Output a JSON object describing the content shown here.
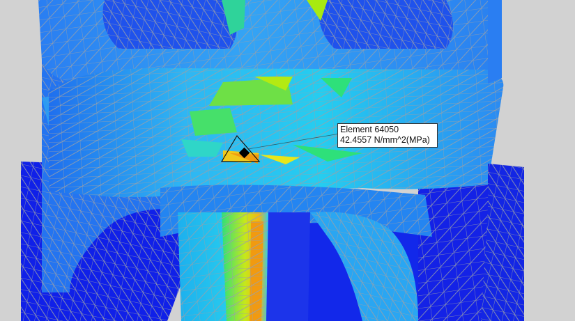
{
  "probe_tooltip": {
    "element_label": "Element 64050",
    "stress_value": "42.4557 N/mm^2(MPa)"
  },
  "colors": {
    "deep_blue": "#1020e8",
    "blue": "#1e5cf0",
    "light_blue": "#2f8ff5",
    "cyan": "#19d6f2",
    "green": "#2ee07a",
    "yellow_green": "#a8ea10",
    "yellow": "#f3e81a",
    "orange": "#f19a10",
    "mesh_line": "#9aa0a8",
    "background": "#d0d0d0"
  }
}
